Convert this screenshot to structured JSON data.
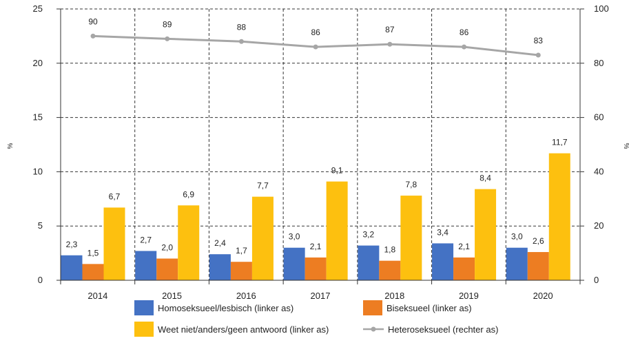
{
  "chart_data": {
    "type": "bar",
    "categories": [
      "2014",
      "2015",
      "2016",
      "2017",
      "2018",
      "2019",
      "2020"
    ],
    "series": [
      {
        "name": "Homoseksueel/lesbisch (linker as)",
        "axis": "left",
        "color": "#4472c4",
        "values": [
          2.3,
          2.7,
          2.4,
          3.0,
          3.2,
          3.4,
          3.0
        ],
        "labels": [
          "2,3",
          "2,7",
          "2,4",
          "3,0",
          "3,2",
          "3,4",
          "3,0"
        ]
      },
      {
        "name": "Biseksueel (linker as)",
        "axis": "left",
        "color": "#ed7d22",
        "values": [
          1.5,
          2.0,
          1.7,
          2.1,
          1.8,
          2.1,
          2.6
        ],
        "labels": [
          "1,5",
          "2,0",
          "1,7",
          "2,1",
          "1,8",
          "2,1",
          "2,6"
        ]
      },
      {
        "name": "Weet niet/anders/geen antwoord (linker as)",
        "axis": "left",
        "color": "#fdc00f",
        "values": [
          6.7,
          6.9,
          7.7,
          9.1,
          7.8,
          8.4,
          11.7
        ],
        "labels": [
          "6,7",
          "6,9",
          "7,7",
          "9,1",
          "7,8",
          "8,4",
          "11,7"
        ]
      },
      {
        "name": "Heteroseksueel (rechter as)",
        "axis": "right",
        "type": "line",
        "color": "#a6a6a6",
        "values": [
          90,
          89,
          88,
          86,
          87,
          86,
          83
        ],
        "labels": [
          "90",
          "89",
          "88",
          "86",
          "87",
          "86",
          "83"
        ]
      }
    ],
    "ylabel": "%",
    "y2label": "%",
    "ylim": [
      0,
      25
    ],
    "y2lim": [
      0,
      100
    ],
    "yticks": [
      "0",
      "5",
      "10",
      "15",
      "20",
      "25"
    ],
    "y2ticks": [
      "0",
      "20",
      "40",
      "60",
      "80",
      "100"
    ],
    "grid": "dashed",
    "legend": "bottom"
  }
}
